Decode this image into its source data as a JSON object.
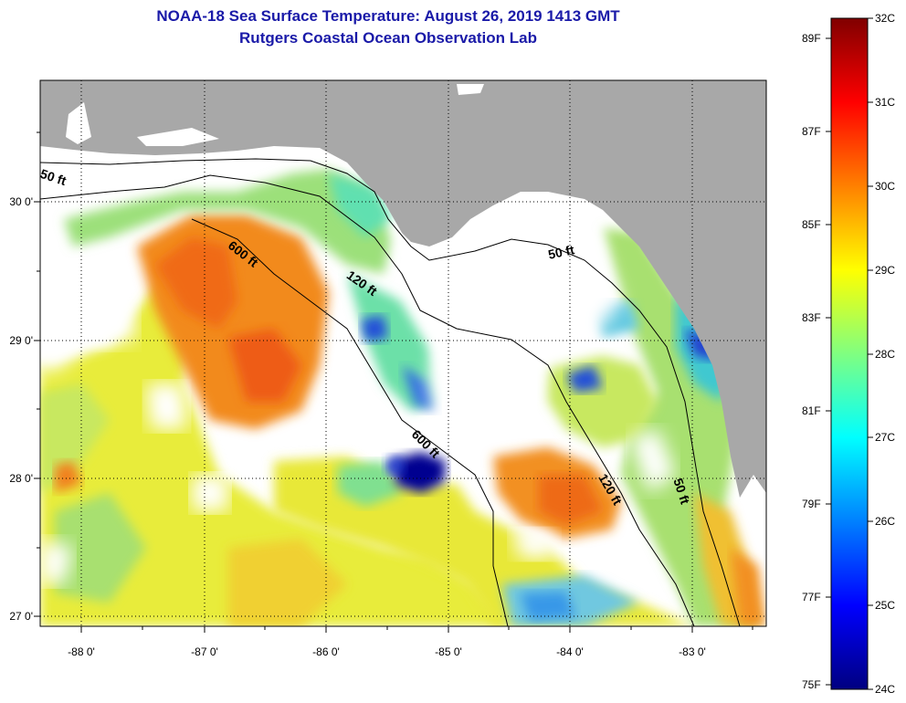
{
  "header": {
    "title": "NOAA-18 Sea Surface Temperature:  August 26, 2019 1413 GMT",
    "subtitle": "Rutgers Coastal Ocean Observation Lab"
  },
  "map": {
    "lat_range": [
      26.97,
      30.78
    ],
    "lon_range": [
      -88.35,
      -82.45
    ],
    "y_ticks": [
      {
        "value": 30,
        "label": "30 0'"
      },
      {
        "value": 29,
        "label": "29 0'"
      },
      {
        "value": 28,
        "label": "28 0'"
      },
      {
        "value": 27,
        "label": "27 0'"
      }
    ],
    "x_ticks": [
      {
        "value": -88,
        "label": "-88 0'"
      },
      {
        "value": -87,
        "label": "-87 0'"
      },
      {
        "value": -86,
        "label": "-86 0'"
      },
      {
        "value": -85,
        "label": "-85 0'"
      },
      {
        "value": -84,
        "label": "-84 0'"
      },
      {
        "value": -83,
        "label": "-83 0'"
      }
    ],
    "land_color": "#a8a8a8",
    "no_data_color": "#ffffff",
    "contour_labels": [
      "50 ft",
      "600 ft",
      "120 ft",
      "50 ft",
      "600 ft",
      "120 ft",
      "50 ft"
    ]
  },
  "colorbar": {
    "min_c": 24,
    "max_c": 32,
    "celsius_labels": [
      "32C",
      "31C",
      "30C",
      "29C",
      "28C",
      "27C",
      "26C",
      "25C",
      "24C"
    ],
    "fahrenheit_labels": [
      "89F",
      "87F",
      "85F",
      "83F",
      "81F",
      "79F",
      "77F",
      "75F"
    ],
    "colors": [
      "#000080",
      "#0000ff",
      "#0080ff",
      "#00ffff",
      "#80ff80",
      "#ffff00",
      "#ff8000",
      "#ff0000",
      "#800000"
    ]
  }
}
